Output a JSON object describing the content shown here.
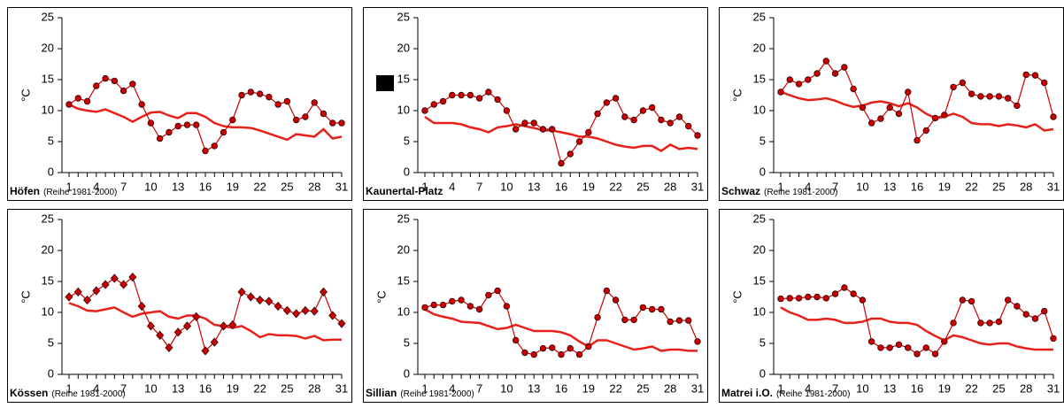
{
  "chart_data": [
    {
      "type": "line",
      "title": "Höfen",
      "subtitle": "(Reihe 1981-2000)",
      "y_label": "°C",
      "x": [
        1,
        2,
        3,
        4,
        5,
        6,
        7,
        8,
        9,
        10,
        11,
        12,
        13,
        14,
        15,
        16,
        17,
        18,
        19,
        20,
        21,
        22,
        23,
        24,
        25,
        26,
        27,
        28,
        29,
        30,
        31
      ],
      "xlim": [
        1,
        31
      ],
      "xticks": [
        1,
        4,
        7,
        10,
        13,
        16,
        19,
        22,
        25,
        28,
        31
      ],
      "ylim": [
        0,
        25
      ],
      "yticks": [
        0,
        5,
        10,
        15,
        20,
        25
      ],
      "series": [
        {
          "color": "#cc0000",
          "marker": "circle",
          "values": [
            11,
            12,
            11.5,
            14,
            15.2,
            14.8,
            13.2,
            14.3,
            11,
            8,
            5.5,
            6.5,
            7.5,
            7.7,
            7.7,
            3.5,
            4.3,
            6.5,
            8.5,
            12.5,
            13,
            12.7,
            12.2,
            11,
            11.5,
            8.5,
            9,
            11.3,
            9.5,
            8,
            8
          ]
        },
        {
          "color": "#e8201a",
          "values": [
            11,
            10.3,
            10,
            9.8,
            10.2,
            9.6,
            9,
            8.2,
            9,
            9.7,
            9.8,
            9.2,
            8.8,
            9.6,
            9.6,
            9,
            8,
            7.5,
            7.3,
            7.3,
            7.2,
            6.8,
            6.3,
            5.8,
            5.3,
            6.2,
            6,
            5.8,
            7,
            5.5,
            5.8
          ]
        }
      ]
    },
    {
      "type": "line",
      "title": "Kaunertal-Platz",
      "x": [
        1,
        2,
        3,
        4,
        5,
        6,
        7,
        8,
        9,
        10,
        11,
        12,
        13,
        14,
        15,
        16,
        17,
        18,
        19,
        20,
        21,
        22,
        23,
        24,
        25,
        26,
        27,
        28,
        29,
        30,
        31
      ],
      "xlim": [
        1,
        31
      ],
      "xticks": [
        1,
        4,
        7,
        10,
        13,
        16,
        19,
        22,
        25,
        28,
        31
      ],
      "ylim": [
        0,
        25
      ],
      "yticks": [
        0,
        5,
        10,
        15,
        20,
        25
      ],
      "series": [
        {
          "color": "#cc0000",
          "marker": "circle",
          "values": [
            10,
            11,
            11.5,
            12.5,
            12.5,
            12.5,
            12,
            13,
            11.8,
            10,
            7,
            8,
            8,
            7,
            7,
            1.5,
            3,
            5,
            6.5,
            9.5,
            11.3,
            12,
            9,
            8.5,
            10,
            10.5,
            8.5,
            8,
            9,
            7.5,
            6
          ]
        },
        {
          "color": "#e8201a",
          "values": [
            9,
            8,
            8,
            8,
            7.8,
            7.3,
            7,
            6.5,
            7.3,
            7.5,
            7.8,
            7.5,
            7.2,
            6.8,
            6.8,
            6.5,
            6.2,
            5.8,
            5.8,
            5.5,
            5,
            4.5,
            4.2,
            4,
            4.3,
            4.3,
            3.5,
            4.5,
            3.8,
            4,
            3.8
          ]
        }
      ]
    },
    {
      "type": "line",
      "title": "Schwaz",
      "subtitle": "(Reihe 1981-2000)",
      "y_label": "°C",
      "x": [
        1,
        2,
        3,
        4,
        5,
        6,
        7,
        8,
        9,
        10,
        11,
        12,
        13,
        14,
        15,
        16,
        17,
        18,
        19,
        20,
        21,
        22,
        23,
        24,
        25,
        26,
        27,
        28,
        29,
        30,
        31
      ],
      "xlim": [
        1,
        31
      ],
      "xticks": [
        1,
        4,
        7,
        10,
        13,
        16,
        19,
        22,
        25,
        28,
        31
      ],
      "ylim": [
        0,
        25
      ],
      "yticks": [
        0,
        5,
        10,
        15,
        20,
        25
      ],
      "series": [
        {
          "color": "#cc0000",
          "marker": "circle",
          "values": [
            13,
            15,
            14.3,
            15,
            16,
            18,
            16,
            17,
            13.5,
            10.5,
            8,
            8.7,
            10.5,
            9.5,
            13,
            5.2,
            6.8,
            8.8,
            9.3,
            13.8,
            14.5,
            12.7,
            12.3,
            12.3,
            12.3,
            12,
            10.8,
            15.8,
            15.7,
            14.5,
            9
          ]
        },
        {
          "color": "#e8201a",
          "values": [
            13,
            12.5,
            12,
            11.7,
            11.8,
            12,
            11.6,
            11,
            10.6,
            10.8,
            11.3,
            11.5,
            11.2,
            10.7,
            11.2,
            10.5,
            9.5,
            8.8,
            9,
            9.5,
            9,
            8,
            7.8,
            7.8,
            7.5,
            7.8,
            7.6,
            7.3,
            7.8,
            6.8,
            7
          ]
        }
      ]
    },
    {
      "type": "line",
      "title": "Kössen",
      "subtitle": "(Reihe 1981-2000)",
      "y_label": "°C",
      "x": [
        1,
        2,
        3,
        4,
        5,
        6,
        7,
        8,
        9,
        10,
        11,
        12,
        13,
        14,
        15,
        16,
        17,
        18,
        19,
        20,
        21,
        22,
        23,
        24,
        25,
        26,
        27,
        28,
        29,
        30,
        31
      ],
      "xlim": [
        1,
        31
      ],
      "xticks": [
        1,
        4,
        7,
        10,
        13,
        16,
        19,
        22,
        25,
        28,
        31
      ],
      "ylim": [
        0,
        25
      ],
      "yticks": [
        0,
        5,
        10,
        15,
        20,
        25
      ],
      "series": [
        {
          "color": "#cc0000",
          "marker": "diamond",
          "values": [
            12.5,
            13.3,
            12,
            13.5,
            14.5,
            15.5,
            14.5,
            15.7,
            11,
            7.8,
            6.3,
            4.3,
            6.8,
            7.8,
            9.3,
            3.8,
            5.2,
            7.8,
            8,
            13.3,
            12.5,
            12,
            11.8,
            11,
            10.3,
            9.8,
            10.3,
            10.2,
            13.3,
            9.5,
            8.2
          ]
        },
        {
          "color": "#e8201a",
          "values": [
            11.5,
            11,
            10.3,
            10.2,
            10.5,
            10.8,
            10,
            9.3,
            9.8,
            10,
            10.2,
            9.3,
            9,
            9.5,
            9.5,
            9,
            8,
            7.8,
            7.5,
            7.8,
            7,
            6,
            6.5,
            6.3,
            6.3,
            6.2,
            5.8,
            6.2,
            5.5,
            5.6,
            5.6
          ]
        }
      ]
    },
    {
      "type": "line",
      "title": "Sillian",
      "subtitle": "(Reihe 1981-2000)",
      "y_label": "°C",
      "x": [
        1,
        2,
        3,
        4,
        5,
        6,
        7,
        8,
        9,
        10,
        11,
        12,
        13,
        14,
        15,
        16,
        17,
        18,
        19,
        20,
        21,
        22,
        23,
        24,
        25,
        26,
        27,
        28,
        29,
        30,
        31
      ],
      "xlim": [
        1,
        31
      ],
      "xticks": [
        1,
        4,
        7,
        10,
        13,
        16,
        19,
        22,
        25,
        28,
        31
      ],
      "ylim": [
        0,
        25
      ],
      "yticks": [
        0,
        5,
        10,
        15,
        20,
        25
      ],
      "series": [
        {
          "color": "#cc0000",
          "marker": "circle",
          "values": [
            10.8,
            11.2,
            11.2,
            11.8,
            12,
            11,
            10.5,
            12.8,
            13.5,
            11,
            5.5,
            3.5,
            3.2,
            4.2,
            4.3,
            3.2,
            4.2,
            3.2,
            4.5,
            9.2,
            13.5,
            12,
            8.8,
            8.8,
            10.8,
            10.5,
            10.5,
            8.5,
            8.7,
            8.7,
            5.3
          ]
        },
        {
          "color": "#e8201a",
          "values": [
            10.5,
            9.7,
            9.3,
            9,
            8.5,
            8.4,
            8.3,
            7.8,
            7.3,
            7.5,
            8,
            7.5,
            7,
            7,
            7,
            6.8,
            6.3,
            5.3,
            4.5,
            5.5,
            5.5,
            5,
            4.5,
            4,
            4.2,
            4.5,
            3.8,
            4,
            4,
            3.8,
            3.8
          ]
        }
      ]
    },
    {
      "type": "line",
      "title": "Matrei i.O.",
      "subtitle": "(Reihe 1981-2000)",
      "y_label": "°C",
      "x": [
        1,
        2,
        3,
        4,
        5,
        6,
        7,
        8,
        9,
        10,
        11,
        12,
        13,
        14,
        15,
        16,
        17,
        18,
        19,
        20,
        21,
        22,
        23,
        24,
        25,
        26,
        27,
        28,
        29,
        30,
        31
      ],
      "xlim": [
        1,
        31
      ],
      "xticks": [
        1,
        4,
        7,
        10,
        13,
        16,
        19,
        22,
        25,
        28,
        31
      ],
      "ylim": [
        0,
        25
      ],
      "yticks": [
        0,
        5,
        10,
        15,
        20,
        25
      ],
      "series": [
        {
          "color": "#cc0000",
          "marker": "circle",
          "values": [
            12.2,
            12.3,
            12.3,
            12.5,
            12.5,
            12.3,
            13,
            14,
            13,
            12,
            5.3,
            4.3,
            4.3,
            4.8,
            4.3,
            3.3,
            4.3,
            3.3,
            5.3,
            8.3,
            12,
            11.8,
            8.3,
            8.3,
            8.5,
            12,
            11,
            9.7,
            9,
            10.2,
            5.8
          ]
        },
        {
          "color": "#e8201a",
          "values": [
            10.8,
            10,
            9.5,
            8.8,
            8.8,
            9,
            8.8,
            8.3,
            8.3,
            8.5,
            9,
            9,
            8.5,
            8.3,
            8.3,
            8,
            7,
            6.2,
            5.5,
            6.3,
            6,
            5.5,
            5,
            4.8,
            5,
            5,
            4.5,
            4.2,
            4,
            4,
            4
          ]
        }
      ]
    }
  ]
}
